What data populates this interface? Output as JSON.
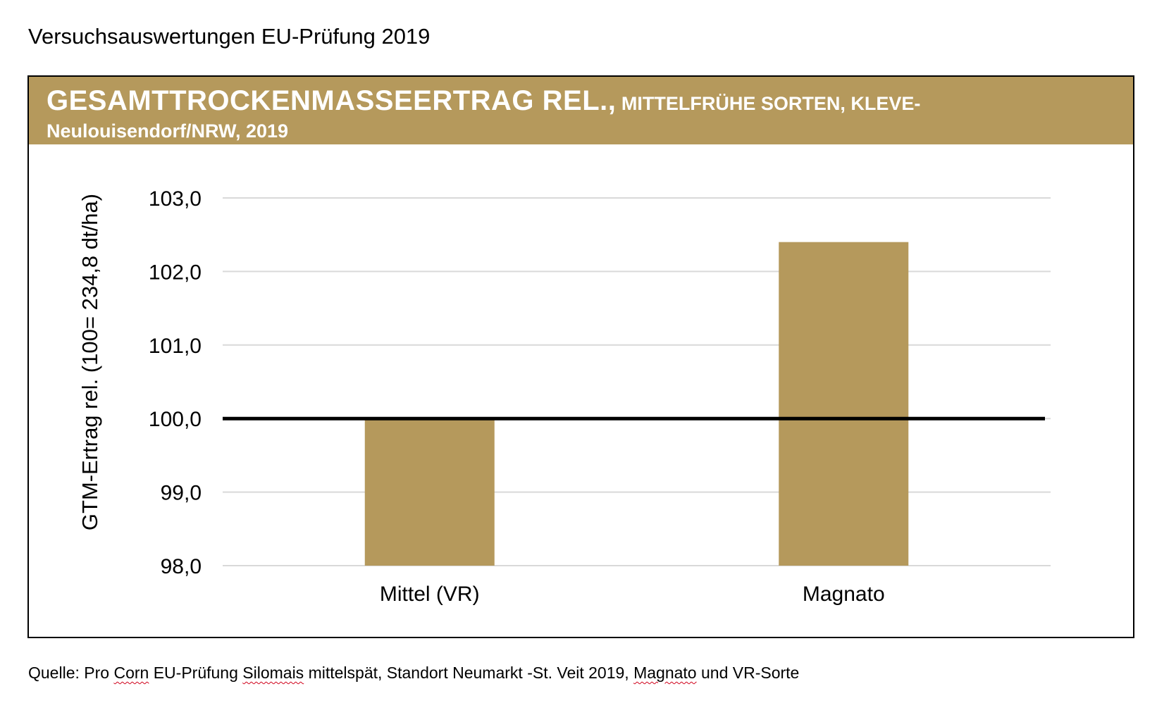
{
  "document": {
    "title": "Versuchsauswertungen EU-Prüfung 2019"
  },
  "chart_header": {
    "title_main": "GESAMTTROCKENMASSEERTRAG REL.,",
    "title_sub": " MITTELFRÜHE SORTEN, KLEVE-",
    "title_line2": "Neulouisendorf/NRW, 2019",
    "background_color": "#b5995c",
    "text_color": "#ffffff"
  },
  "chart_data": {
    "type": "bar",
    "title": "GESAMTTROCKENMASSEERTRAG REL., MITTELFRÜHE SORTEN, KLEVE-Neulouisendorf/NRW, 2019",
    "xlabel": "",
    "ylabel": "GTM-Ertrag rel. (100= 234,8 dt/ha)",
    "categories": [
      "Mittel (VR)",
      "Magnato"
    ],
    "values": [
      100.0,
      102.4
    ],
    "ylim": [
      98.0,
      103.0
    ],
    "yticks": [
      98.0,
      99.0,
      100.0,
      101.0,
      102.0,
      103.0
    ],
    "ytick_labels": [
      "98,0",
      "99,0",
      "100,0",
      "101,0",
      "102,0",
      "103,0"
    ],
    "reference_line": 100.0,
    "bar_color": "#b5995c",
    "grid": true,
    "grid_color": "#d9d9d9",
    "reference_line_color": "#000000",
    "legend": "none"
  },
  "source": {
    "prefix": "Quelle: Pro ",
    "word1": "Corn",
    "mid1": " EU-Prüfung ",
    "word2": "Silomais",
    "mid2": " mittelspät, Standort Neumarkt -St. Veit 2019, ",
    "word3": "Magnato",
    "suffix": " und VR-Sorte"
  }
}
